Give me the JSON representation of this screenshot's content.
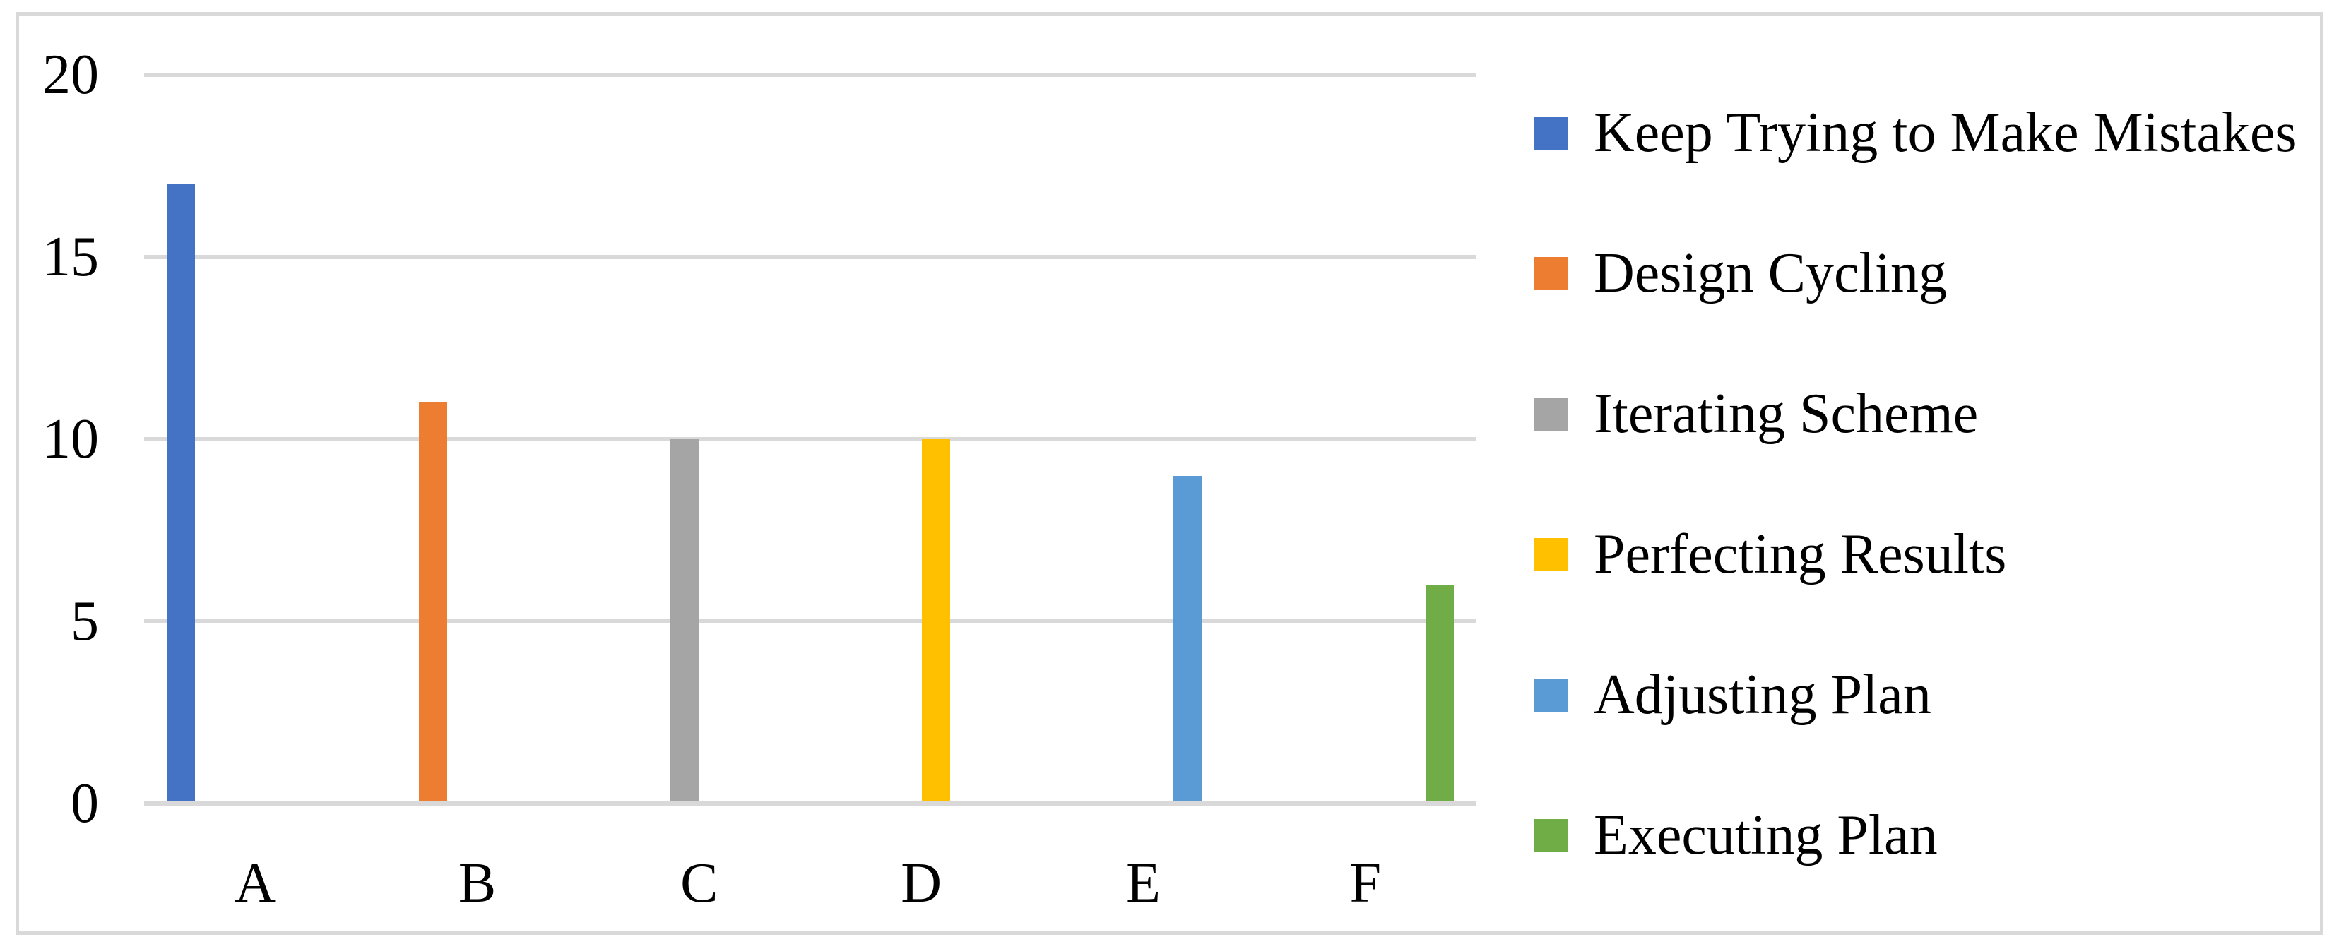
{
  "chart_data": {
    "type": "bar",
    "title": "",
    "xlabel": "",
    "ylabel": "",
    "categories": [
      "A",
      "B",
      "C",
      "D",
      "E",
      "F"
    ],
    "series": [
      {
        "name": "Keep Trying to Make Mistakes",
        "color": "#4472C4",
        "values": [
          17,
          0,
          0,
          0,
          0,
          0
        ]
      },
      {
        "name": "Design Cycling",
        "color": "#ED7D31",
        "values": [
          0,
          11,
          0,
          0,
          0,
          0
        ]
      },
      {
        "name": "Iterating Scheme",
        "color": "#A5A5A5",
        "values": [
          0,
          0,
          10,
          0,
          0,
          0
        ]
      },
      {
        "name": "Perfecting Results",
        "color": "#FFC000",
        "values": [
          0,
          0,
          0,
          10,
          0,
          0
        ]
      },
      {
        "name": "Adjusting Plan",
        "color": "#5B9BD5",
        "values": [
          0,
          0,
          0,
          0,
          9,
          0
        ]
      },
      {
        "name": "Executing Plan",
        "color": "#70AD47",
        "values": [
          0,
          0,
          0,
          0,
          0,
          6
        ]
      }
    ],
    "ylim": [
      0,
      20
    ],
    "yticks": [
      0,
      5,
      10,
      15,
      20
    ],
    "grid": true,
    "legend_position": "right",
    "gridline_color": "#D9D9D9",
    "frame_color": "#D9D9D9"
  }
}
